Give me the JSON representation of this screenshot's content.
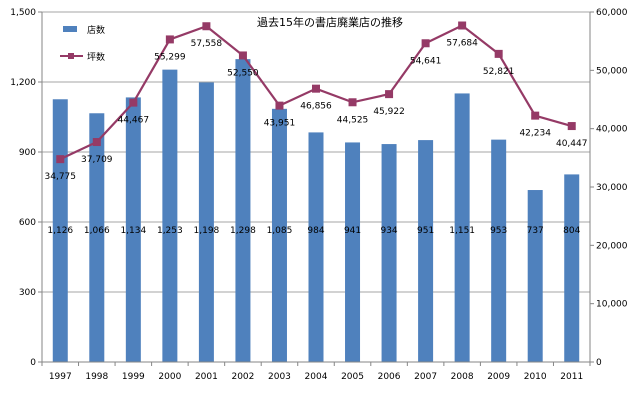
{
  "chart_data": {
    "type": "bar",
    "title": "過去15年の書店廃業店の推移",
    "categories": [
      "1997",
      "1998",
      "1999",
      "2000",
      "2001",
      "2002",
      "2003",
      "2004",
      "2005",
      "2006",
      "2007",
      "2008",
      "2009",
      "2010",
      "2011"
    ],
    "series": [
      {
        "name": "店数",
        "type": "bar",
        "axis": "left",
        "color": "#4f81bd",
        "values": [
          1126,
          1066,
          1134,
          1253,
          1198,
          1298,
          1085,
          984,
          941,
          934,
          951,
          1151,
          953,
          737,
          804
        ],
        "labels": [
          "1,126",
          "1,066",
          "1,134",
          "1,253",
          "1,198",
          "1,298",
          "1,085",
          "984",
          "941",
          "934",
          "951",
          "1,151",
          "953",
          "737",
          "804"
        ]
      },
      {
        "name": "坪数",
        "type": "line",
        "axis": "right",
        "color": "#953a66",
        "values": [
          34775,
          37709,
          44467,
          55299,
          57558,
          52550,
          43951,
          46856,
          44525,
          45922,
          54641,
          57684,
          52821,
          42234,
          40447
        ],
        "labels": [
          "34,775",
          "37,709",
          "44,467",
          "55,299",
          "57,558",
          "52,550",
          "43,951",
          "46,856",
          "44,525",
          "45,922",
          "54,641",
          "57,684",
          "52,821",
          "42,234",
          "40,447"
        ]
      }
    ],
    "y_left": {
      "min": 0,
      "max": 1500,
      "ticks": [
        0,
        300,
        600,
        900,
        1200,
        1500
      ],
      "tick_labels": [
        "0",
        "300",
        "600",
        "900",
        "1,200",
        "1,500"
      ]
    },
    "y_right": {
      "min": 0,
      "max": 60000,
      "ticks": [
        0,
        10000,
        20000,
        30000,
        40000,
        50000,
        60000
      ],
      "tick_labels": [
        "0",
        "10,000",
        "20,000",
        "30,000",
        "40,000",
        "50,000",
        "60,000"
      ]
    },
    "grid": true,
    "legend_position": "top-left"
  }
}
